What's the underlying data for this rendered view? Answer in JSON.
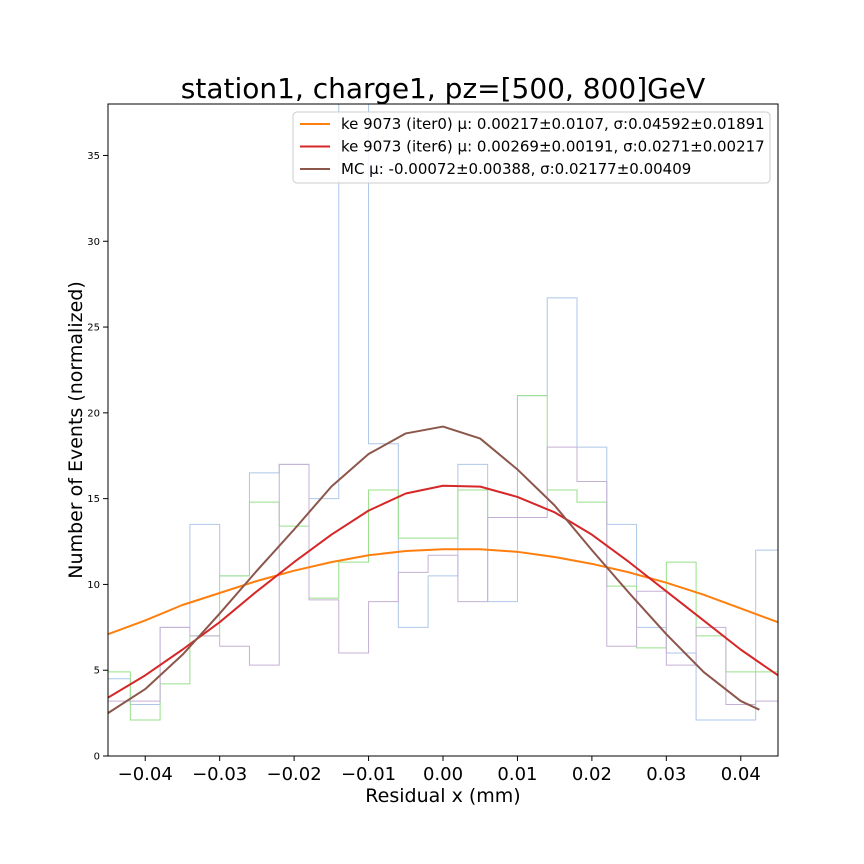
{
  "chart_data": {
    "type": "line",
    "title": "station1, charge1, pz=[500, 800]GeV",
    "xlabel": "Residual x (mm)",
    "ylabel": "Number of Events (normalized)",
    "xlim": [
      -0.045,
      0.045
    ],
    "ylim": [
      0,
      38
    ],
    "x_ticks": [
      -0.04,
      -0.03,
      -0.02,
      -0.01,
      0.0,
      0.01,
      0.02,
      0.03,
      0.04
    ],
    "x_tick_labels": [
      "−0.04",
      "−0.03",
      "−0.02",
      "−0.01",
      "0.00",
      "0.01",
      "0.02",
      "0.03",
      "0.04"
    ],
    "y_ticks": [
      0,
      5,
      10,
      15,
      20,
      25,
      30,
      35
    ],
    "y_tick_labels": [
      "0",
      "5",
      "10",
      "15",
      "20",
      "25",
      "30",
      "35"
    ],
    "legend_position": "top-right",
    "bin_edges": [
      -0.046,
      -0.042,
      -0.038,
      -0.034,
      -0.03,
      -0.026,
      -0.022,
      -0.018,
      -0.014,
      -0.01,
      -0.006,
      -0.002,
      0.002,
      0.006,
      0.01,
      0.014,
      0.018,
      0.022,
      0.026,
      0.03,
      0.034,
      0.038,
      0.042,
      0.046
    ],
    "histograms": [
      {
        "color": "#aec7e8",
        "values": [
          4.5,
          3.0,
          7.5,
          13.5,
          10.5,
          16.5,
          17.0,
          15.0,
          38.0,
          18.2,
          7.5,
          10.5,
          17.0,
          9.0,
          21.0,
          26.7,
          18.0,
          13.5,
          7.5,
          6.0,
          2.1,
          2.1,
          12.0
        ]
      },
      {
        "color": "#98df8a",
        "values": [
          4.9,
          2.1,
          4.2,
          7.0,
          10.5,
          14.8,
          13.4,
          9.2,
          11.3,
          15.5,
          12.7,
          12.7,
          15.5,
          13.9,
          21.0,
          15.5,
          14.8,
          9.9,
          6.3,
          11.3,
          7.0,
          4.9,
          4.9
        ]
      },
      {
        "color": "#c5b0d5",
        "values": [
          3.2,
          3.2,
          7.5,
          7.0,
          6.4,
          5.3,
          17.0,
          9.1,
          6.0,
          9.0,
          10.7,
          11.7,
          9.0,
          13.9,
          13.9,
          18.0,
          16.0,
          6.4,
          9.6,
          5.3,
          7.5,
          3.0,
          3.2
        ]
      }
    ],
    "series": [
      {
        "name": "ke 9073 (iter0) μ: 0.00217±0.0107, σ:0.04592±0.01891",
        "color": "#ff7f0e",
        "x": [
          -0.045,
          -0.04,
          -0.035,
          -0.03,
          -0.025,
          -0.02,
          -0.015,
          -0.01,
          -0.005,
          0.0,
          0.005,
          0.01,
          0.015,
          0.02,
          0.025,
          0.03,
          0.035,
          0.04,
          0.045
        ],
        "values": [
          7.1,
          7.9,
          8.8,
          9.5,
          10.2,
          10.8,
          11.3,
          11.7,
          11.95,
          12.05,
          12.05,
          11.9,
          11.6,
          11.2,
          10.7,
          10.1,
          9.4,
          8.6,
          7.8
        ]
      },
      {
        "name": "ke 9073 (iter6) μ: 0.00269±0.00191, σ:0.0271±0.00217",
        "color": "#d62728",
        "x": [
          -0.045,
          -0.04,
          -0.035,
          -0.03,
          -0.025,
          -0.02,
          -0.015,
          -0.01,
          -0.005,
          0.0,
          0.005,
          0.01,
          0.015,
          0.02,
          0.025,
          0.03,
          0.035,
          0.04,
          0.045
        ],
        "values": [
          3.4,
          4.7,
          6.2,
          7.8,
          9.6,
          11.3,
          12.9,
          14.3,
          15.3,
          15.75,
          15.7,
          15.1,
          14.2,
          12.9,
          11.3,
          9.6,
          7.9,
          6.2,
          4.7
        ]
      },
      {
        "name": "MC μ: -0.00072±0.00388, σ:0.02177±0.00409",
        "color": "#8c564b",
        "x": [
          -0.045,
          -0.04,
          -0.035,
          -0.03,
          -0.025,
          -0.02,
          -0.015,
          -0.01,
          -0.005,
          0.0,
          0.005,
          0.01,
          0.015,
          0.02,
          0.025,
          0.03,
          0.035,
          0.04,
          0.0425
        ],
        "values": [
          2.5,
          3.9,
          5.9,
          8.3,
          10.8,
          13.2,
          15.7,
          17.6,
          18.8,
          19.2,
          18.5,
          16.7,
          14.6,
          12.0,
          9.5,
          7.1,
          4.9,
          3.2,
          2.7
        ]
      }
    ]
  }
}
